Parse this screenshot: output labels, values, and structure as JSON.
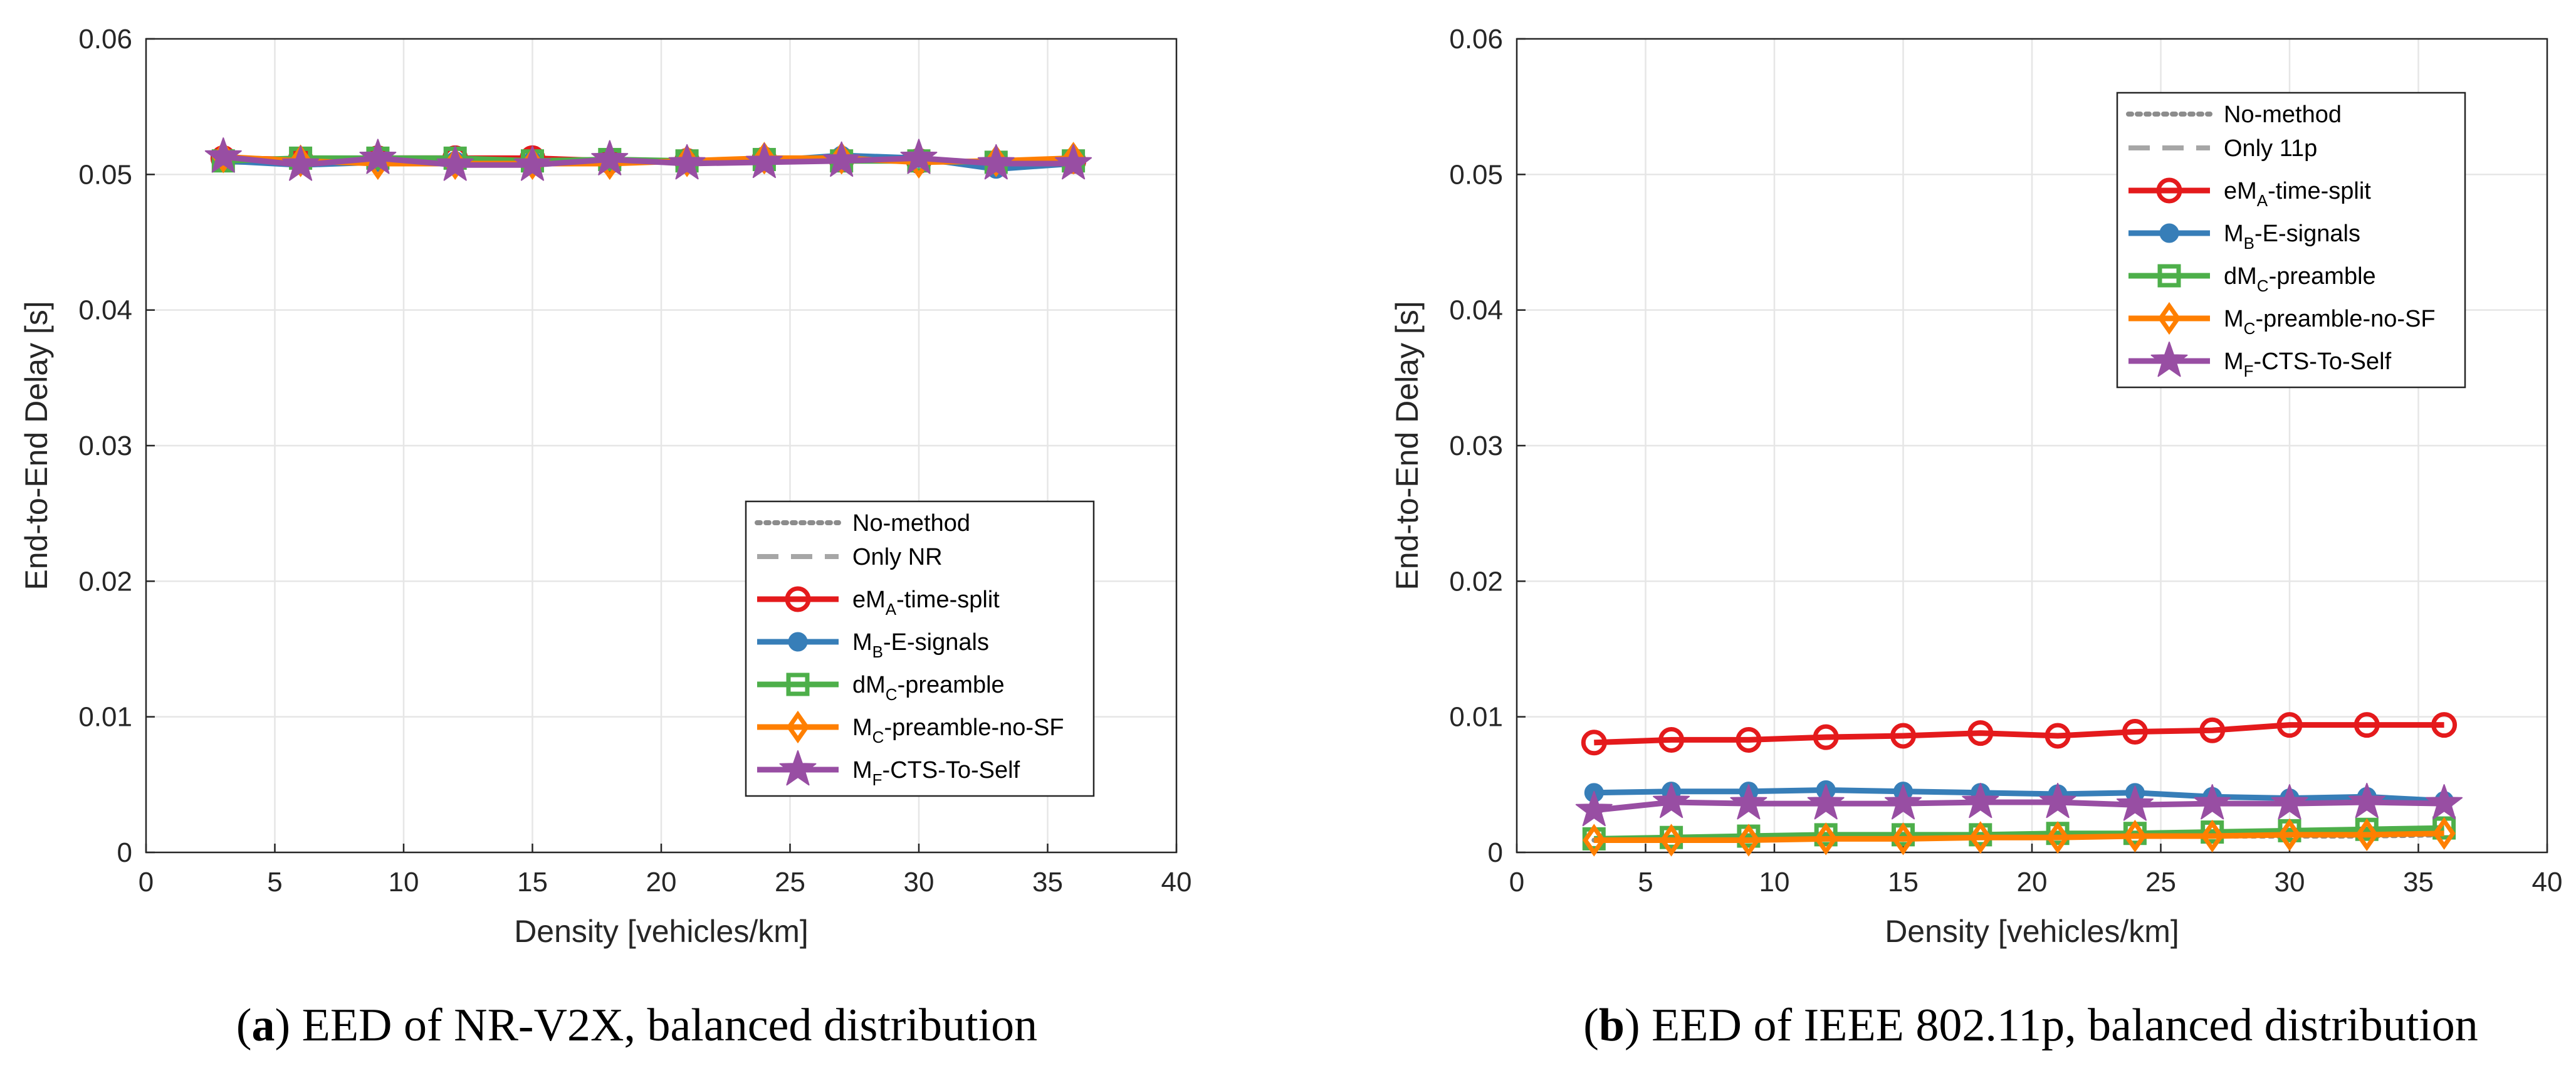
{
  "colors": {
    "no_method": "#8c8c8c",
    "only": "#a6a6a6",
    "emA": "#e41a1c",
    "mB": "#377eb8",
    "dmC": "#4daf4a",
    "mC": "#ff7f00",
    "mF": "#984ea3",
    "grid": "#e6e6e6",
    "axis": "#262626"
  },
  "chart_data": [
    {
      "id": "a",
      "type": "line",
      "caption": {
        "label": "a",
        "text": ") EED of NR-V2X, balanced distribution"
      },
      "xlabel": "Density [vehicles/km]",
      "ylabel": "End-to-End Delay [s]",
      "xlim": [
        0,
        40
      ],
      "ylim": [
        0,
        0.06
      ],
      "xticks": [
        "0",
        "5",
        "10",
        "15",
        "20",
        "25",
        "30",
        "35",
        "40"
      ],
      "yticks": [
        "0",
        "0.01",
        "0.02",
        "0.03",
        "0.04",
        "0.05",
        "0.06"
      ],
      "grid": true,
      "legend_position": "bottom-right",
      "x": [
        3,
        6,
        9,
        12,
        15,
        18,
        21,
        24,
        27,
        30,
        33,
        36
      ],
      "series": [
        {
          "key": "no_method",
          "name": "No-method",
          "sub": "",
          "name_suffix": "",
          "style": "dotted",
          "marker": "none",
          "values": [
            0.051,
            0.0509,
            0.051,
            0.051,
            0.051,
            0.0509,
            0.051,
            0.051,
            0.051,
            0.051,
            0.0509,
            0.051
          ]
        },
        {
          "key": "only",
          "name": "Only NR",
          "sub": "",
          "name_suffix": "",
          "style": "dashed",
          "marker": "none",
          "values": [
            0.0509,
            0.0509,
            0.051,
            0.0509,
            0.051,
            0.051,
            0.0509,
            0.051,
            0.051,
            0.051,
            0.0509,
            0.051
          ]
        },
        {
          "key": "emA",
          "name": "eM",
          "sub": "A",
          "name_suffix": "-time-split",
          "style": "solid",
          "marker": "circle",
          "values": [
            0.0512,
            0.0511,
            0.0512,
            0.0512,
            0.0512,
            0.051,
            0.051,
            0.0511,
            0.0511,
            0.051,
            0.0508,
            0.051
          ]
        },
        {
          "key": "mB",
          "name": "M",
          "sub": "B",
          "name_suffix": "-E-signals",
          "style": "solid",
          "marker": "dot",
          "values": [
            0.051,
            0.0507,
            0.0509,
            0.051,
            0.051,
            0.051,
            0.0509,
            0.051,
            0.0514,
            0.0512,
            0.0504,
            0.0508
          ]
        },
        {
          "key": "dmC",
          "name": "dM",
          "sub": "C",
          "name_suffix": "-preamble",
          "style": "solid",
          "marker": "square",
          "values": [
            0.051,
            0.0512,
            0.0512,
            0.0512,
            0.051,
            0.0511,
            0.051,
            0.0511,
            0.051,
            0.051,
            0.0509,
            0.051
          ]
        },
        {
          "key": "mC",
          "name": "M",
          "sub": "C",
          "name_suffix": "-preamble-no-SF",
          "style": "solid",
          "marker": "diamond",
          "values": [
            0.0513,
            0.051,
            0.0508,
            0.0508,
            0.0508,
            0.0508,
            0.051,
            0.0512,
            0.0512,
            0.0509,
            0.051,
            0.0512
          ]
        },
        {
          "key": "mF",
          "name": "M",
          "sub": "F",
          "name_suffix": "-CTS-To-Self",
          "style": "solid",
          "marker": "star",
          "values": [
            0.0513,
            0.0507,
            0.0512,
            0.0507,
            0.0507,
            0.0511,
            0.0508,
            0.0509,
            0.051,
            0.0512,
            0.0508,
            0.0508
          ]
        }
      ]
    },
    {
      "id": "b",
      "type": "line",
      "caption": {
        "label": "b",
        "text": ") EED of IEEE 802.11p, balanced distribution"
      },
      "xlabel": "Density [vehicles/km]",
      "ylabel": "End-to-End Delay [s]",
      "xlim": [
        0,
        40
      ],
      "ylim": [
        0,
        0.06
      ],
      "xticks": [
        "0",
        "5",
        "10",
        "15",
        "20",
        "25",
        "30",
        "35",
        "40"
      ],
      "yticks": [
        "0",
        "0.01",
        "0.02",
        "0.03",
        "0.04",
        "0.05",
        "0.06"
      ],
      "grid": true,
      "legend_position": "top-right",
      "x": [
        3,
        6,
        9,
        12,
        15,
        18,
        21,
        24,
        27,
        30,
        33,
        36
      ],
      "series": [
        {
          "key": "no_method",
          "name": "No-method",
          "sub": "",
          "name_suffix": "",
          "style": "dotted",
          "marker": "none",
          "values": [
            0.0009,
            0.001,
            0.001,
            0.0011,
            0.0011,
            0.0011,
            0.0011,
            0.0012,
            0.0012,
            0.0012,
            0.0012,
            0.0013
          ]
        },
        {
          "key": "only",
          "name": "Only 11p",
          "sub": "",
          "name_suffix": "",
          "style": "dashed",
          "marker": "none",
          "values": [
            0.001,
            0.0011,
            0.0011,
            0.0012,
            0.0012,
            0.0013,
            0.0013,
            0.0013,
            0.0014,
            0.0014,
            0.0015,
            0.0016
          ]
        },
        {
          "key": "emA",
          "name": "eM",
          "sub": "A",
          "name_suffix": "-time-split",
          "style": "solid",
          "marker": "circle",
          "values": [
            0.0081,
            0.0083,
            0.0083,
            0.0085,
            0.0086,
            0.0088,
            0.0086,
            0.0089,
            0.009,
            0.0094,
            0.0094,
            0.0094
          ]
        },
        {
          "key": "mB",
          "name": "M",
          "sub": "B",
          "name_suffix": "-E-signals",
          "style": "solid",
          "marker": "dot",
          "values": [
            0.0044,
            0.0045,
            0.0045,
            0.0046,
            0.0045,
            0.0044,
            0.0043,
            0.0044,
            0.0041,
            0.004,
            0.0041,
            0.0038
          ]
        },
        {
          "key": "dmC",
          "name": "dM",
          "sub": "C",
          "name_suffix": "-preamble",
          "style": "solid",
          "marker": "square",
          "values": [
            0.001,
            0.0011,
            0.0012,
            0.0013,
            0.0013,
            0.0013,
            0.0014,
            0.0014,
            0.0015,
            0.0016,
            0.0017,
            0.0018
          ]
        },
        {
          "key": "mC",
          "name": "M",
          "sub": "C",
          "name_suffix": "-preamble-no-SF",
          "style": "solid",
          "marker": "diamond",
          "values": [
            0.0009,
            0.0009,
            0.0009,
            0.001,
            0.001,
            0.0011,
            0.0011,
            0.0012,
            0.0012,
            0.0013,
            0.0013,
            0.0014
          ]
        },
        {
          "key": "mF",
          "name": "M",
          "sub": "F",
          "name_suffix": "-CTS-To-Self",
          "style": "solid",
          "marker": "star",
          "values": [
            0.0031,
            0.0037,
            0.0036,
            0.0036,
            0.0036,
            0.0037,
            0.0037,
            0.0035,
            0.0036,
            0.0036,
            0.0037,
            0.0036
          ]
        }
      ]
    }
  ]
}
